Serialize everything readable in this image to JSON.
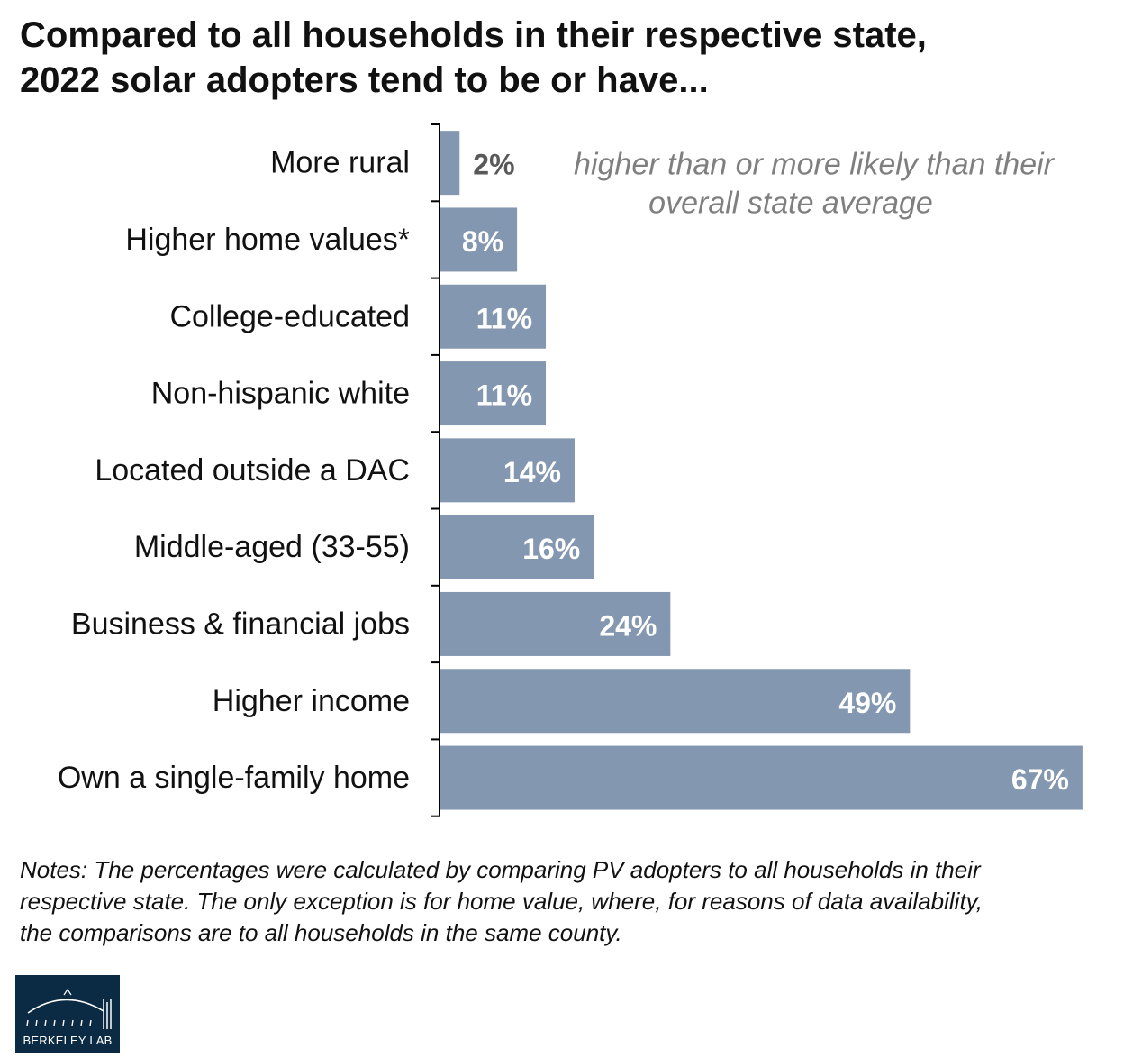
{
  "title_lines": [
    "Compared to all households in their respective state,",
    "2022 solar adopters tend to be or have..."
  ],
  "colors": {
    "bar": "#8497b0",
    "label_in_bar": "#ffffff",
    "label_outside": "#595959",
    "annotation": "#7f7f7f",
    "logo_bg": "#0b2a43"
  },
  "chart_data": {
    "type": "bar",
    "orientation": "horizontal",
    "title": "Compared to all households in their respective state, 2022 solar adopters tend to be or have...",
    "categories": [
      "More rural",
      "Higher home values*",
      "College-educated",
      "Non-hispanic white",
      "Located outside a DAC",
      "Middle-aged (33-55)",
      "Business & financial jobs",
      "Higher income",
      "Own a single-family home"
    ],
    "values": [
      2,
      8,
      11,
      11,
      14,
      16,
      24,
      49,
      67
    ],
    "value_labels": [
      "2%",
      "8%",
      "11%",
      "11%",
      "14%",
      "16%",
      "24%",
      "49%",
      "67%"
    ],
    "unit": "%",
    "annotation_lines": [
      "higher than or more likely than their",
      "overall state average"
    ],
    "grid": false,
    "legend": "none"
  },
  "notes_lines": [
    "Notes: The percentages were calculated by comparing PV adopters to all households in their",
    "respective state. The only exception is for home value, where, for reasons of data availability,",
    "the comparisons are to all households in the same county."
  ],
  "logo": {
    "text": "BERKELEY LAB",
    "icon": "berkeley-lab-logo-icon"
  }
}
